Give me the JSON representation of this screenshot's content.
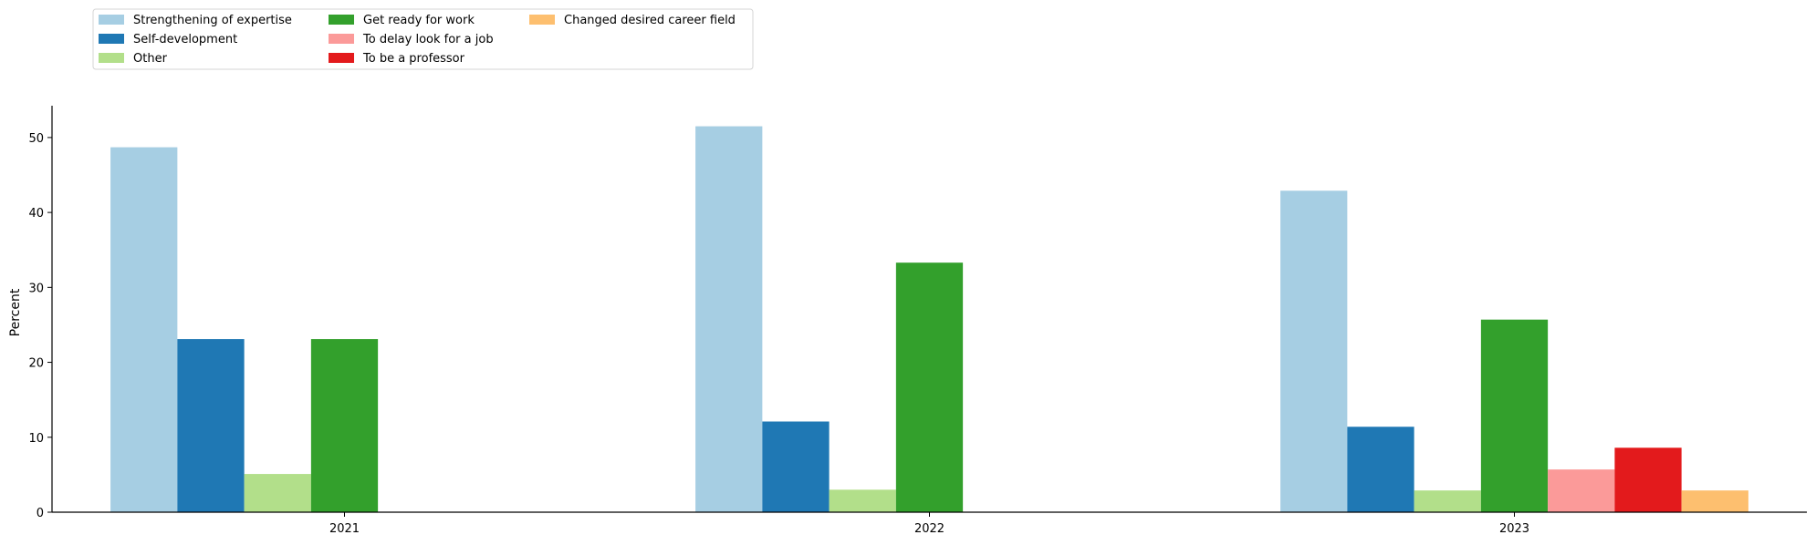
{
  "chart_data": {
    "type": "bar",
    "categories": [
      "2021",
      "2022",
      "2023"
    ],
    "ylabel": "Percent",
    "xlabel": "",
    "ylim": [
      0,
      54
    ],
    "yticks": [
      0,
      10,
      20,
      30,
      40,
      50
    ],
    "legend_position": "top-left",
    "legend_columns": 3,
    "series": [
      {
        "name": "Strengthening of expertise",
        "color": "#a6cee3",
        "values": [
          48.7,
          51.5,
          42.9
        ]
      },
      {
        "name": "Self-development",
        "color": "#1f78b4",
        "values": [
          23.1,
          12.1,
          11.4
        ]
      },
      {
        "name": "Other",
        "color": "#b2df8a",
        "values": [
          5.1,
          3.0,
          2.9
        ]
      },
      {
        "name": "Get ready for work",
        "color": "#33a02c",
        "values": [
          23.1,
          33.3,
          25.7
        ]
      },
      {
        "name": "To delay look for a job",
        "color": "#fb9a99",
        "values": [
          null,
          null,
          5.7
        ]
      },
      {
        "name": "To be a professor",
        "color": "#e31a1c",
        "values": [
          null,
          null,
          8.6
        ]
      },
      {
        "name": "Changed desired career field",
        "color": "#fdbf6f",
        "values": [
          null,
          null,
          2.9
        ]
      }
    ]
  }
}
